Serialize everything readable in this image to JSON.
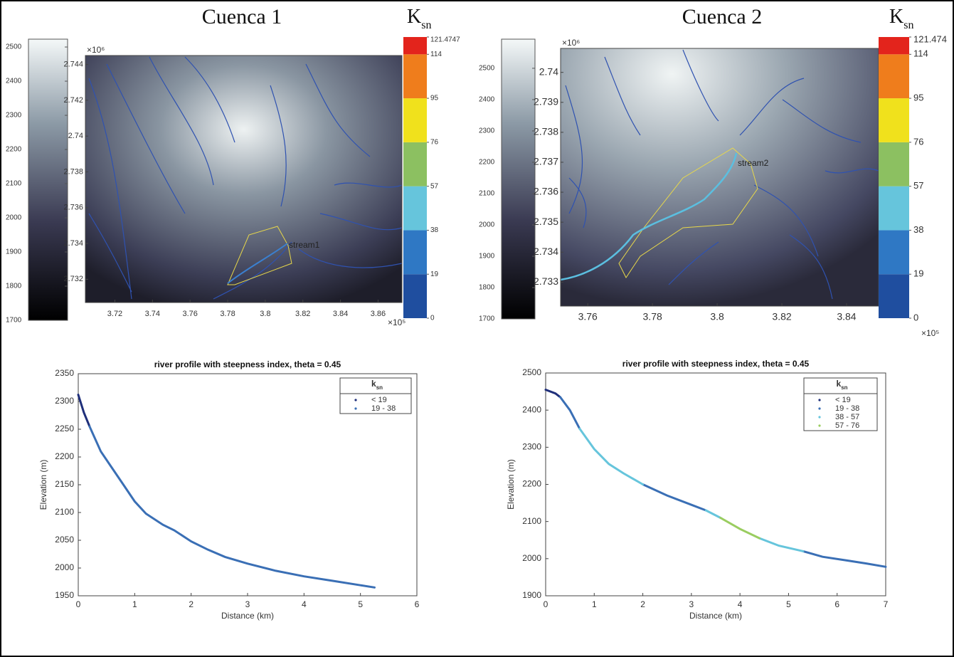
{
  "chart_data": [
    {
      "type": "map",
      "title": "Cuenca 1",
      "ksn_label": "K",
      "ksn_label_sub": "sn",
      "elevation_ylim": [
        1700,
        2523
      ],
      "elevation_ticks": [
        1700,
        1800,
        1900,
        2000,
        2100,
        2200,
        2300,
        2400,
        2500
      ],
      "xlim": [
        3.7043,
        3.8727
      ],
      "xticks": [
        3.72,
        3.74,
        3.76,
        3.78,
        3.8,
        3.82,
        3.84,
        3.86
      ],
      "x_multiplier": "×10⁵",
      "ylim": [
        2.7307,
        2.7445
      ],
      "yticks": [
        2.732,
        2.734,
        2.736,
        2.738,
        2.74,
        2.742,
        2.744
      ],
      "y_multiplier": "×10⁶",
      "ksn_ticks": [
        0,
        19,
        38,
        57,
        76,
        95,
        114,
        121.4747
      ],
      "ksn_colors": [
        "#1f4e9f",
        "#2f78c4",
        "#66c5dc",
        "#8cc061",
        "#f0e11c",
        "#ef7d1c",
        "#e3241c"
      ],
      "stream_label": "stream1"
    },
    {
      "type": "map",
      "title": "Cuenca 2",
      "ksn_label": "K",
      "ksn_label_sub": "sn",
      "elevation_ylim": [
        1700,
        2593
      ],
      "elevation_ticks": [
        1700,
        1800,
        1900,
        2000,
        2100,
        2200,
        2300,
        2400,
        2500
      ],
      "xlim": [
        3.7516,
        3.8499
      ],
      "xticks": [
        3.76,
        3.78,
        3.8,
        3.82,
        3.84
      ],
      "x_multiplier": "×10⁵",
      "ylim": [
        2.7322,
        2.7408
      ],
      "yticks": [
        2.733,
        2.734,
        2.735,
        2.736,
        2.737,
        2.738,
        2.739,
        2.74
      ],
      "y_multiplier": "×10⁶",
      "ksn_ticks": [
        0,
        19,
        38,
        57,
        76,
        95,
        114,
        121.474
      ],
      "ksn_colors": [
        "#1f4e9f",
        "#2f78c4",
        "#66c5dc",
        "#8cc061",
        "#f0e11c",
        "#ef7d1c",
        "#e3241c"
      ],
      "stream_label": "stream2"
    },
    {
      "type": "line",
      "title": "river profile with steepness index, theta = 0.45",
      "x_label": "Distance (km)",
      "y_label": "Elevation (m)",
      "legend_title": "k",
      "legend_title_sub": "sn",
      "xlim": [
        0,
        6
      ],
      "xticks": [
        0,
        1,
        2,
        3,
        4,
        5,
        6
      ],
      "ylim": [
        1950,
        2350
      ],
      "yticks": [
        1950,
        2000,
        2050,
        2100,
        2150,
        2200,
        2250,
        2300,
        2350
      ],
      "x": [
        0,
        0.1,
        0.2,
        0.4,
        0.6,
        0.8,
        1.0,
        1.2,
        1.5,
        1.7,
        2.0,
        2.3,
        2.6,
        3.0,
        3.5,
        4.0,
        4.5,
        5.0,
        5.25
      ],
      "series": [
        {
          "name": "< 19",
          "color": "#1f2f7a",
          "values": [
            2312,
            2280,
            2255,
            null,
            null,
            null,
            null,
            null,
            null,
            null,
            null,
            null,
            null,
            null,
            null,
            null,
            null,
            null,
            null
          ]
        },
        {
          "name": "19 - 38",
          "color": "#3a6fb5",
          "values": [
            null,
            null,
            2255,
            2210,
            2180,
            2150,
            2120,
            2098,
            2078,
            2068,
            2048,
            2033,
            2020,
            2008,
            1995,
            1985,
            1977,
            1969,
            1965
          ]
        }
      ]
    },
    {
      "type": "line",
      "title": "river profile with steepness index, theta = 0.45",
      "x_label": "Distance (km)",
      "y_label": "Elevation (m)",
      "legend_title": "k",
      "legend_title_sub": "sn",
      "xlim": [
        0,
        7
      ],
      "xticks": [
        0,
        1,
        2,
        3,
        4,
        5,
        6,
        7
      ],
      "ylim": [
        1900,
        2500
      ],
      "yticks": [
        1900,
        2000,
        2100,
        2200,
        2300,
        2400,
        2500
      ],
      "x": [
        0,
        0.2,
        0.3,
        0.5,
        0.7,
        1.0,
        1.3,
        1.6,
        2.0,
        2.5,
        3.0,
        3.3,
        3.6,
        4.0,
        4.4,
        4.8,
        5.3,
        5.7,
        6.2,
        6.6,
        7.0
      ],
      "series": [
        {
          "name": "< 19",
          "color": "#1f2f7a",
          "values": [
            2455,
            2445,
            2435,
            null,
            null,
            null,
            null,
            null,
            null,
            null,
            null,
            null,
            null,
            null,
            null,
            null,
            null,
            null,
            null,
            null,
            null
          ]
        },
        {
          "name": "19 - 38",
          "color": "#3a6fb5",
          "values": [
            null,
            null,
            2435,
            2400,
            2350,
            null,
            null,
            null,
            2200,
            2170,
            2145,
            2130,
            null,
            null,
            null,
            null,
            2020,
            2005,
            1995,
            1987,
            1978
          ]
        },
        {
          "name": "38 - 57",
          "color": "#66c5dc",
          "values": [
            null,
            null,
            null,
            null,
            2350,
            2295,
            2255,
            2230,
            2200,
            null,
            null,
            2130,
            2110,
            null,
            2055,
            2035,
            2020,
            null,
            null,
            null,
            null
          ]
        },
        {
          "name": "57 - 76",
          "color": "#9acd60",
          "values": [
            null,
            null,
            null,
            null,
            null,
            null,
            null,
            null,
            null,
            null,
            null,
            null,
            2110,
            2080,
            2055,
            null,
            null,
            null,
            null,
            null,
            null
          ]
        }
      ]
    }
  ]
}
